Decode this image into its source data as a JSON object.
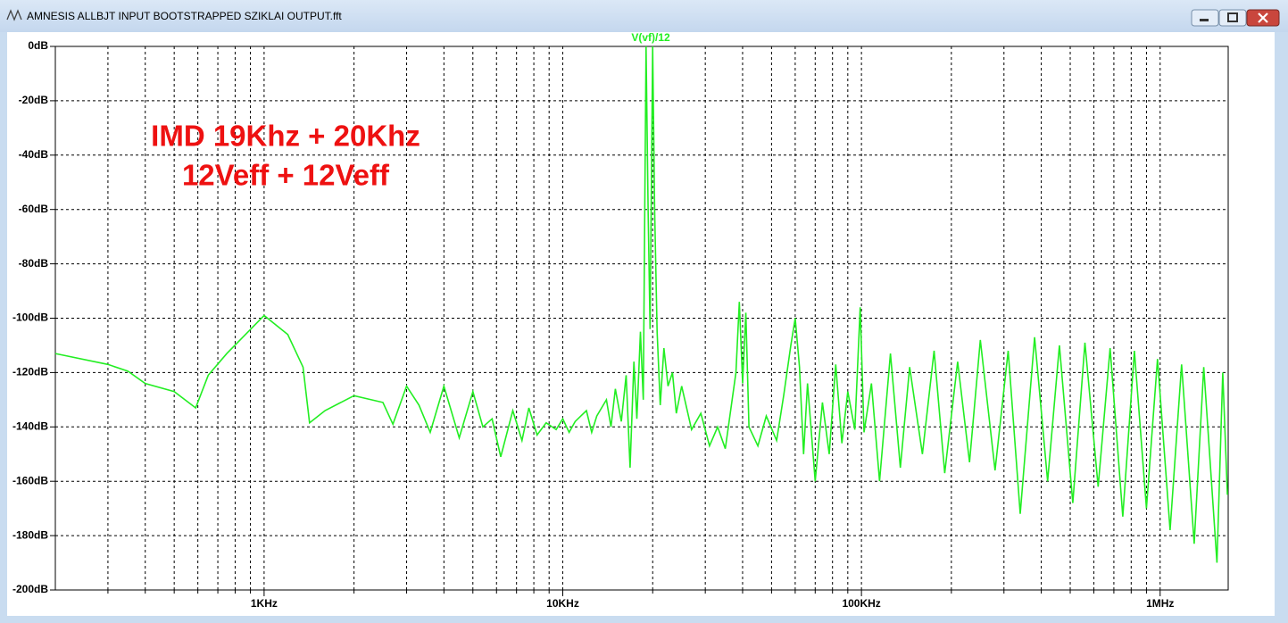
{
  "window": {
    "title": "AMNESIS  ALLBJT INPUT BOOTSTRAPPED SZIKLAI OUTPUT.fft"
  },
  "chart_data": {
    "type": "line",
    "annotations": [
      "IMD 19Khz + 20Khz",
      "12Veff + 12Veff"
    ],
    "annotation_color": "#ee1111",
    "log_x": true,
    "grid": true,
    "xlim": [
      200,
      1690000
    ],
    "ylim": [
      -200,
      0
    ],
    "xticks": [
      {
        "value": 1000,
        "label": "1KHz"
      },
      {
        "value": 10000,
        "label": "10KHz"
      },
      {
        "value": 100000,
        "label": "100KHz"
      },
      {
        "value": 1000000,
        "label": "1MHz"
      }
    ],
    "x_minor_ticks": [
      300,
      400,
      500,
      600,
      700,
      800,
      900,
      2000,
      3000,
      4000,
      5000,
      6000,
      7000,
      8000,
      9000,
      20000,
      30000,
      40000,
      50000,
      60000,
      70000,
      80000,
      90000,
      200000,
      300000,
      400000,
      500000,
      600000,
      700000,
      800000,
      900000
    ],
    "yticks": [
      {
        "value": 0,
        "label": "0dB"
      },
      {
        "value": -20,
        "label": "-20dB"
      },
      {
        "value": -40,
        "label": "-40dB"
      },
      {
        "value": -60,
        "label": "-60dB"
      },
      {
        "value": -80,
        "label": "-80dB"
      },
      {
        "value": -100,
        "label": "-100dB"
      },
      {
        "value": -120,
        "label": "-120dB"
      },
      {
        "value": -140,
        "label": "-140dB"
      },
      {
        "value": -160,
        "label": "-160dB"
      },
      {
        "value": -180,
        "label": "-180dB"
      },
      {
        "value": -200,
        "label": "-200dB"
      }
    ],
    "x": [
      200,
      300,
      350,
      400,
      500,
      590,
      650,
      750,
      1000,
      1200,
      1350,
      1420,
      1600,
      2000,
      2500,
      2700,
      3000,
      3300,
      3600,
      4000,
      4500,
      5000,
      5400,
      5800,
      6200,
      6800,
      7300,
      7700,
      8200,
      8800,
      9500,
      10000,
      10500,
      11000,
      12000,
      12500,
      13000,
      14000,
      14500,
      15000,
      15700,
      16300,
      16800,
      17300,
      17700,
      18200,
      18600,
      19000,
      19300,
      19600,
      20000,
      20300,
      20700,
      21200,
      21800,
      22500,
      23300,
      24000,
      25000,
      27000,
      29000,
      31000,
      33000,
      35000,
      38000,
      39000,
      40000,
      41000,
      42000,
      45000,
      48000,
      52000,
      55000,
      58000,
      60000,
      62000,
      64000,
      66000,
      70000,
      74000,
      78000,
      82000,
      86000,
      90000,
      95000,
      99000,
      102000,
      108000,
      115000,
      125000,
      135000,
      145000,
      160000,
      175000,
      190000,
      210000,
      230000,
      250000,
      280000,
      310000,
      340000,
      380000,
      420000,
      460000,
      510000,
      560000,
      620000,
      680000,
      750000,
      820000,
      900000,
      980000,
      1080000,
      1180000,
      1300000,
      1400000,
      1550000,
      1620000,
      1680000
    ],
    "series": [
      {
        "name": "V(vf)/12",
        "color": "#22ee22",
        "values": [
          -113,
          -117,
          -119.5,
          -124,
          -127,
          -133,
          -121,
          -113,
          -99,
          -106,
          -118,
          -138.5,
          -134,
          -128.5,
          -131,
          -139,
          -125,
          -132,
          -142,
          -125,
          -144,
          -127,
          -140,
          -137,
          -151,
          -134,
          -145,
          -133,
          -143,
          -138.5,
          -141,
          -137,
          -142,
          -138,
          -134,
          -142,
          -136,
          -130,
          -140,
          -126,
          -138,
          -121,
          -155,
          -116,
          -137,
          -105,
          -130,
          0,
          -60,
          -104,
          0,
          -60,
          -105,
          -132,
          -111,
          -125,
          -120,
          -135,
          -125,
          -141,
          -135,
          -147,
          -140,
          -148,
          -120,
          -94,
          -124,
          -98,
          -140,
          -147,
          -136,
          -145,
          -128,
          -110,
          -100,
          -118,
          -150,
          -124,
          -160,
          -131,
          -150,
          -117,
          -146,
          -127,
          -141,
          -96,
          -142,
          -124,
          -160,
          -113,
          -155,
          -118,
          -150,
          -112,
          -157,
          -116,
          -153,
          -108,
          -156,
          -112,
          -172,
          -107,
          -160,
          -110,
          -168,
          -109,
          -162,
          -111,
          -173,
          -112,
          -170,
          -115,
          -178,
          -117,
          -183,
          -118,
          -190,
          -120,
          -165
        ]
      }
    ]
  }
}
